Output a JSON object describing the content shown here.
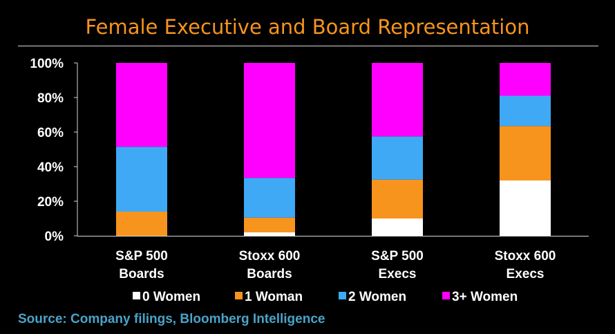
{
  "title": "Female Executive and Board Representation",
  "source": "Source: Company filings, Bloomberg Intelligence",
  "chart_data": {
    "type": "bar",
    "stacked": true,
    "categories": [
      [
        "S&P 500",
        "Boards"
      ],
      [
        "Stoxx 600",
        "Boards"
      ],
      [
        "S&P 500",
        "Execs"
      ],
      [
        "Stoxx 600",
        "Execs"
      ]
    ],
    "series": [
      {
        "name": "0 Women",
        "color": "#ffffff",
        "values": [
          0,
          2,
          10,
          32
        ]
      },
      {
        "name": "1 Woman",
        "color": "#f7941d",
        "values": [
          14,
          8.5,
          22.5,
          31.5
        ]
      },
      {
        "name": "2 Women",
        "color": "#3fa9f5",
        "values": [
          37.5,
          23,
          25,
          17.5
        ]
      },
      {
        "name": "3+ Women",
        "color": "#ff00ff",
        "values": [
          48.5,
          66.5,
          42.5,
          19
        ]
      }
    ],
    "ylim": [
      0,
      100
    ],
    "yticks": [
      "0%",
      "20%",
      "40%",
      "60%",
      "80%",
      "100%"
    ],
    "grid": false,
    "legend": "bottom"
  }
}
